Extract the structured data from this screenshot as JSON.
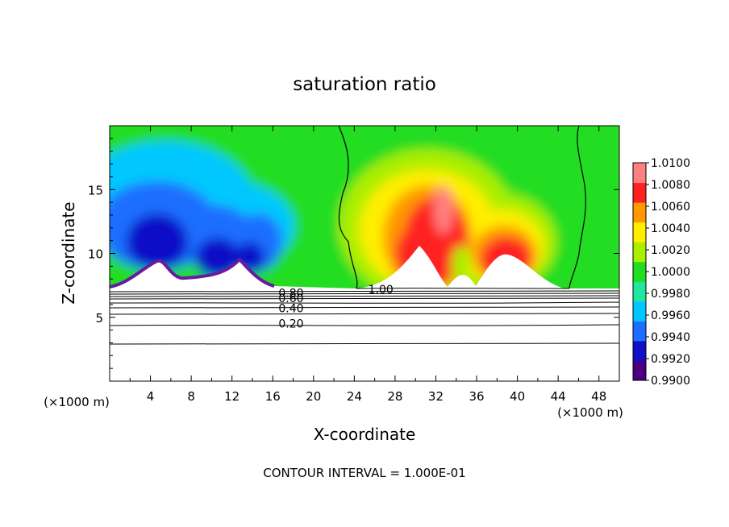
{
  "chart_data": {
    "type": "heatmap",
    "title": "saturation ratio",
    "xlabel": "X-coordinate",
    "ylabel": "Z-coordinate",
    "x_unit": "(×1000 m)",
    "x_unit_right": "(×1000 m)",
    "footer": "CONTOUR INTERVAL = 1.000E-01",
    "xlim": [
      0,
      50
    ],
    "ylim": [
      0,
      20
    ],
    "xticks": [
      4,
      8,
      12,
      16,
      20,
      24,
      28,
      32,
      36,
      40,
      44,
      48
    ],
    "xtick_labels": [
      "4",
      "8",
      "12",
      "16",
      "20",
      "24",
      "28",
      "32",
      "36",
      "40",
      "44",
      "48"
    ],
    "yticks": [
      5,
      10,
      15
    ],
    "ytick_labels": [
      "5",
      "10",
      "15"
    ],
    "colorbar": {
      "levels": [
        0.99,
        0.992,
        0.994,
        0.996,
        0.998,
        1.0,
        1.002,
        1.004,
        1.006,
        1.008,
        1.01
      ],
      "labels": [
        "0.9900",
        "0.9920",
        "0.9940",
        "0.9960",
        "0.9980",
        "1.0000",
        "1.0020",
        "1.0040",
        "1.0060",
        "1.0080",
        "1.0100"
      ],
      "colors": [
        "#4b0082",
        "#1010c8",
        "#1e6eff",
        "#00c8ff",
        "#20e6a0",
        "#22dd22",
        "#aaee00",
        "#ffee00",
        "#ff9900",
        "#ff2020",
        "#ff8080"
      ]
    },
    "contour_labels": [
      {
        "text": "0.80",
        "x": 17.8,
        "y": 6.9
      },
      {
        "text": "0.60",
        "x": 17.8,
        "y": 6.5
      },
      {
        "text": "0.40",
        "x": 17.8,
        "y": 5.7
      },
      {
        "text": "0.20",
        "x": 17.8,
        "y": 4.5
      },
      {
        "text": "1.00",
        "x": 26.6,
        "y": 7.2
      }
    ],
    "grid": false
  },
  "colors": {
    "background": "#ffffff",
    "axis": "#000000"
  }
}
